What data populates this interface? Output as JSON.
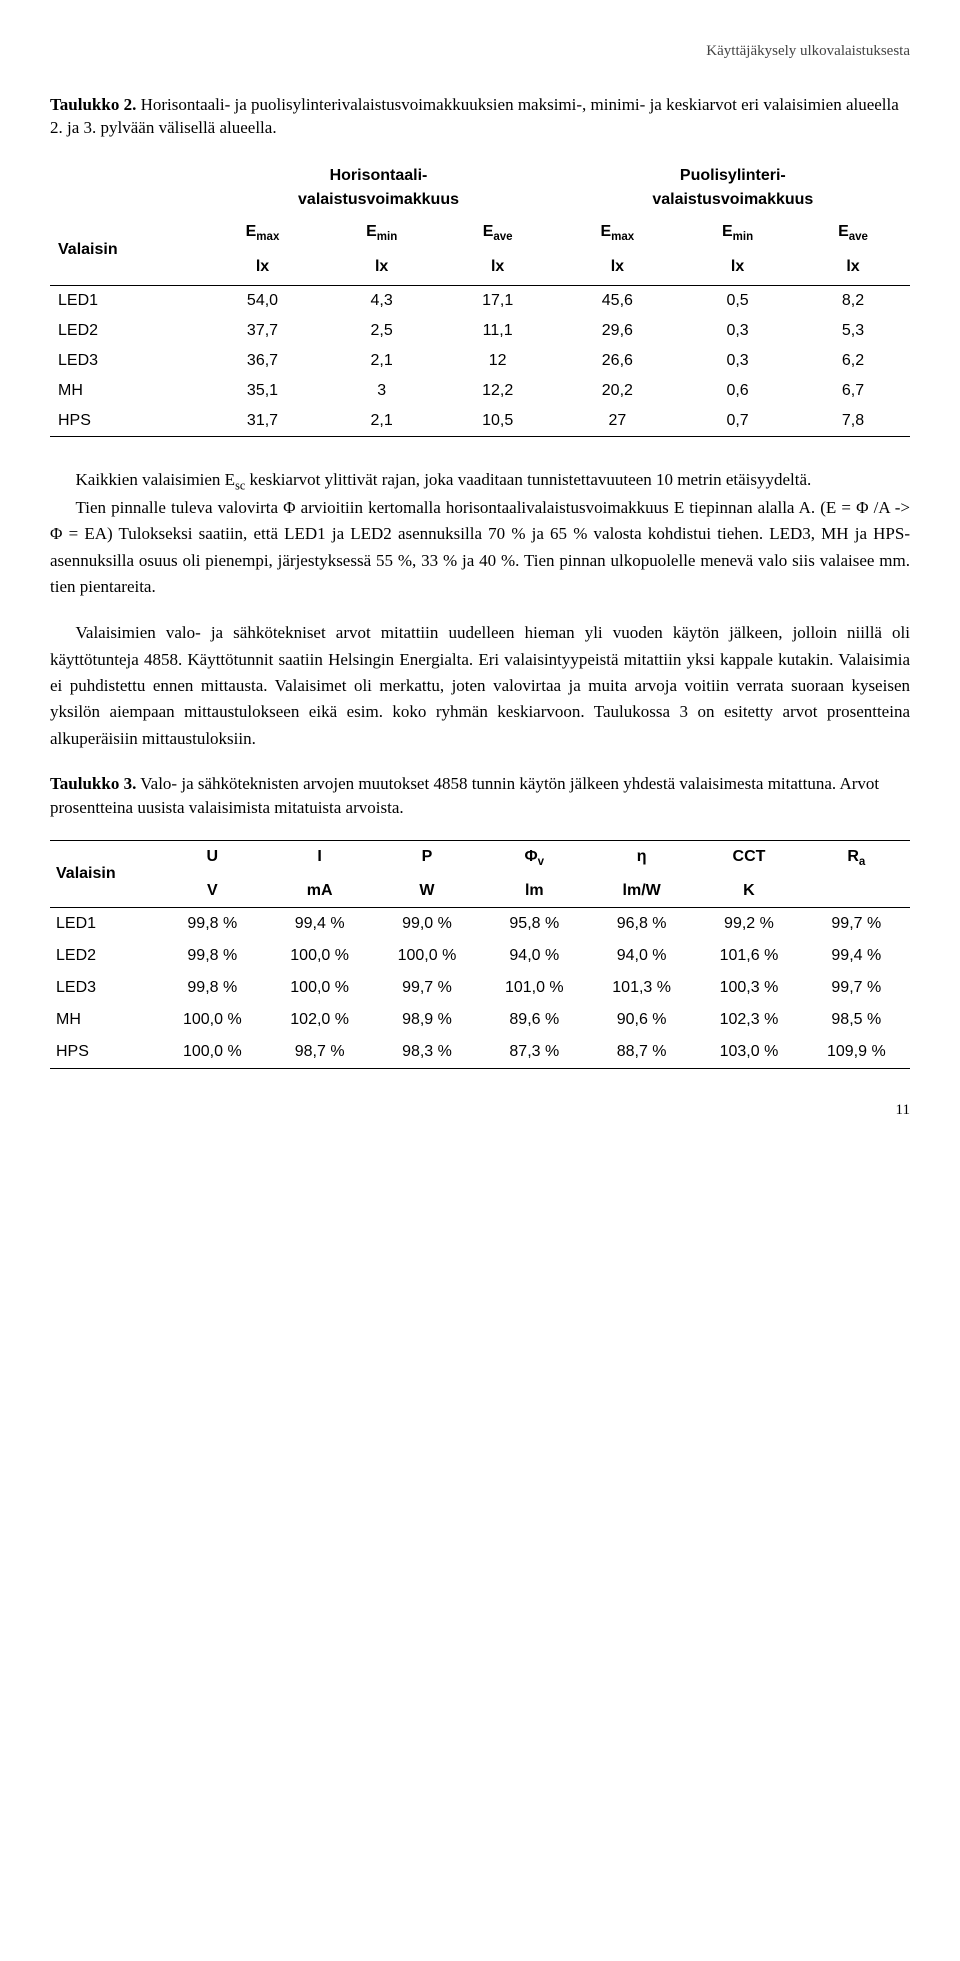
{
  "header": {
    "right": "Käyttäjäkysely ulkovalaistuksesta"
  },
  "caption1": {
    "bold": "Taulukko 2.",
    "rest": " Horisontaali- ja puolisylinterivalaistusvoimakkuuksien maksimi-, minimi- ja keskiarvot eri valaisimien alueella 2. ja 3. pylvään välisellä alueella."
  },
  "table1": {
    "corner": "Valaisin",
    "group_headers": [
      "Horisontaali-\nvalaistusvoimakkuus",
      "Puolisylinteri-\nvalaistusvoimakkuus"
    ],
    "sub_headers": [
      "E",
      "E",
      "E",
      "E",
      "E",
      "E"
    ],
    "sub_header_subs": [
      "max",
      "min",
      "ave",
      "max",
      "min",
      "ave"
    ],
    "units": [
      "lx",
      "lx",
      "lx",
      "lx",
      "lx",
      "lx"
    ],
    "rows": [
      {
        "name": "LED1",
        "vals": [
          "54,0",
          "4,3",
          "17,1",
          "45,6",
          "0,5",
          "8,2"
        ]
      },
      {
        "name": "LED2",
        "vals": [
          "37,7",
          "2,5",
          "11,1",
          "29,6",
          "0,3",
          "5,3"
        ]
      },
      {
        "name": "LED3",
        "vals": [
          "36,7",
          "2,1",
          "12",
          "26,6",
          "0,3",
          "6,2"
        ]
      },
      {
        "name": "MH",
        "vals": [
          "35,1",
          "3",
          "12,2",
          "20,2",
          "0,6",
          "6,7"
        ]
      },
      {
        "name": "HPS",
        "vals": [
          "31,7",
          "2,1",
          "10,5",
          "27",
          "0,7",
          "7,8"
        ]
      }
    ]
  },
  "para1": {
    "p1": "Kaikkien valaisimien Esc keskiarvot ylittivät rajan, joka vaaditaan tunnistettavuuteen 10 metrin etäisyydeltä.",
    "p2": "Tien pinnalle tuleva valovirta Φ arvioitiin kertomalla horisontaalivalaistusvoimakkuus E tiepinnan alalla A. (E = Φ /A -> Φ = EA) Tulokseksi saatiin, että LED1 ja LED2 asennuksilla 70 % ja 65 % valosta kohdistui tiehen. LED3, MH ja HPS-asennuksilla osuus oli pienempi, järjestyksessä 55 %, 33 % ja 40 %. Tien pinnan ulkopuolelle menevä valo siis valaisee mm. tien pientareita."
  },
  "para2": {
    "p1": "Valaisimien valo- ja sähkötekniset arvot mitattiin uudelleen hieman yli vuoden käytön jälkeen, jolloin niillä oli käyttötunteja 4858. Käyttötunnit saatiin Helsingin Energialta. Eri valaisintyypeistä mitattiin yksi kappale kutakin. Valaisimia ei puhdistettu ennen mittausta. Valaisimet oli merkattu, joten valovirtaa ja muita arvoja voitiin verrata suoraan kyseisen yksilön aiempaan mittaustulokseen eikä esim. koko ryhmän keskiarvoon. Taulukossa 3 on esitetty arvot prosentteina alkuperäisiin mittaustuloksiin."
  },
  "caption3": {
    "bold": "Taulukko 3.",
    "rest": " Valo- ja sähköteknisten arvojen muutokset 4858 tunnin käytön jälkeen yhdestä valaisimesta mitattuna. Arvot prosentteina uusista valaisimista mitatuista arvoista."
  },
  "table3": {
    "corner": "Valaisin",
    "headers": [
      "U",
      "I",
      "P",
      "Φv",
      "η",
      "CCT",
      "Ra"
    ],
    "header_plain": [
      "U",
      "I",
      "P",
      "Φ",
      "η",
      "CCT",
      "R"
    ],
    "header_sub": [
      "",
      "",
      "",
      "v",
      "",
      "",
      "a"
    ],
    "units": [
      "V",
      "mA",
      "W",
      "lm",
      "lm/W",
      "K",
      ""
    ],
    "rows": [
      {
        "name": "LED1",
        "vals": [
          "99,8 %",
          "99,4 %",
          "99,0 %",
          "95,8 %",
          "96,8 %",
          "99,2 %",
          "99,7 %"
        ]
      },
      {
        "name": "LED2",
        "vals": [
          "99,8 %",
          "100,0 %",
          "100,0 %",
          "94,0 %",
          "94,0 %",
          "101,6 %",
          "99,4 %"
        ]
      },
      {
        "name": "LED3",
        "vals": [
          "99,8 %",
          "100,0 %",
          "99,7 %",
          "101,0 %",
          "101,3 %",
          "100,3 %",
          "99,7 %"
        ]
      },
      {
        "name": "MH",
        "vals": [
          "100,0 %",
          "102,0 %",
          "98,9 %",
          "89,6 %",
          "90,6 %",
          "102,3 %",
          "98,5 %"
        ]
      },
      {
        "name": "HPS",
        "vals": [
          "100,0 %",
          "98,7 %",
          "98,3 %",
          "87,3 %",
          "88,7 %",
          "103,0 %",
          "109,9 %"
        ]
      }
    ]
  },
  "page_number": "11"
}
